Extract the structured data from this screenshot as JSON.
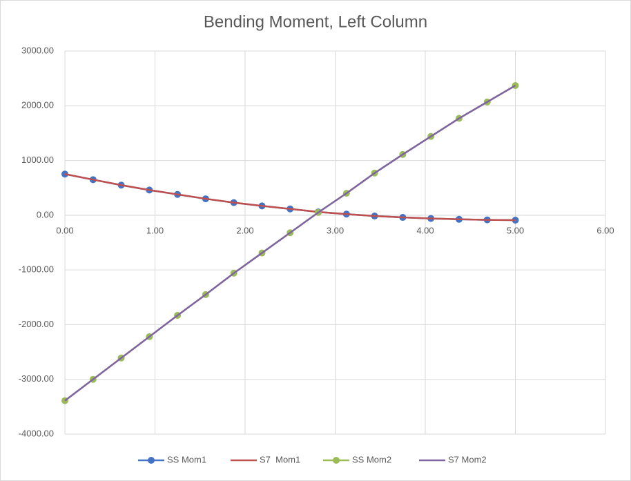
{
  "chart_data": {
    "type": "line",
    "title": "Bending Moment, Left Column",
    "x": [
      0,
      0.3125,
      0.625,
      0.9375,
      1.25,
      1.5625,
      1.875,
      2.1875,
      2.5,
      2.8125,
      3.125,
      3.4375,
      3.75,
      4.0625,
      4.375,
      4.6875,
      5.0
    ],
    "series": [
      {
        "name": "SS Mom1",
        "color": "#4472c4",
        "marker": true,
        "values": [
          752,
          650,
          550,
          460,
          380,
          300,
          230,
          170,
          115,
          60,
          20,
          -15,
          -40,
          -60,
          -75,
          -85,
          -90
        ]
      },
      {
        "name": "S7  Mom1",
        "color": "#c0504d",
        "marker": false,
        "values": [
          752,
          650,
          550,
          460,
          380,
          300,
          230,
          170,
          115,
          60,
          20,
          -15,
          -40,
          -60,
          -75,
          -85,
          -90
        ]
      },
      {
        "name": "SS Mom2",
        "color": "#9bbb59",
        "marker": true,
        "values": [
          -3390,
          -3000,
          -2610,
          -2220,
          -1830,
          -1450,
          -1060,
          -690,
          -320,
          50,
          400,
          770,
          1110,
          1440,
          1770,
          2070,
          2370
        ]
      },
      {
        "name": "S7 Mom2",
        "color": "#8064a2",
        "marker": false,
        "values": [
          -3390,
          -3000,
          -2610,
          -2220,
          -1830,
          -1450,
          -1060,
          -690,
          -320,
          50,
          400,
          770,
          1110,
          1440,
          1770,
          2070,
          2370
        ]
      }
    ],
    "xlim": [
      0,
      6
    ],
    "xticks": [
      {
        "value": 0,
        "label": "0.00"
      },
      {
        "value": 1,
        "label": "1.00"
      },
      {
        "value": 2,
        "label": "2.00"
      },
      {
        "value": 3,
        "label": "3.00"
      },
      {
        "value": 4,
        "label": "4.00"
      },
      {
        "value": 5,
        "label": "5.00"
      },
      {
        "value": 6,
        "label": "6.00"
      }
    ],
    "ylim": [
      -4000,
      3000
    ],
    "yticks": [
      {
        "value": -4000,
        "label": "-4000.00"
      },
      {
        "value": -3000,
        "label": "-3000.00"
      },
      {
        "value": -2000,
        "label": "-2000.00"
      },
      {
        "value": -1000,
        "label": "-1000.00"
      },
      {
        "value": 0,
        "label": "0.00"
      },
      {
        "value": 1000,
        "label": "1000.00"
      },
      {
        "value": 2000,
        "label": "2000.00"
      },
      {
        "value": 3000,
        "label": "3000.00"
      }
    ],
    "grid": true,
    "legend": "bottom"
  }
}
